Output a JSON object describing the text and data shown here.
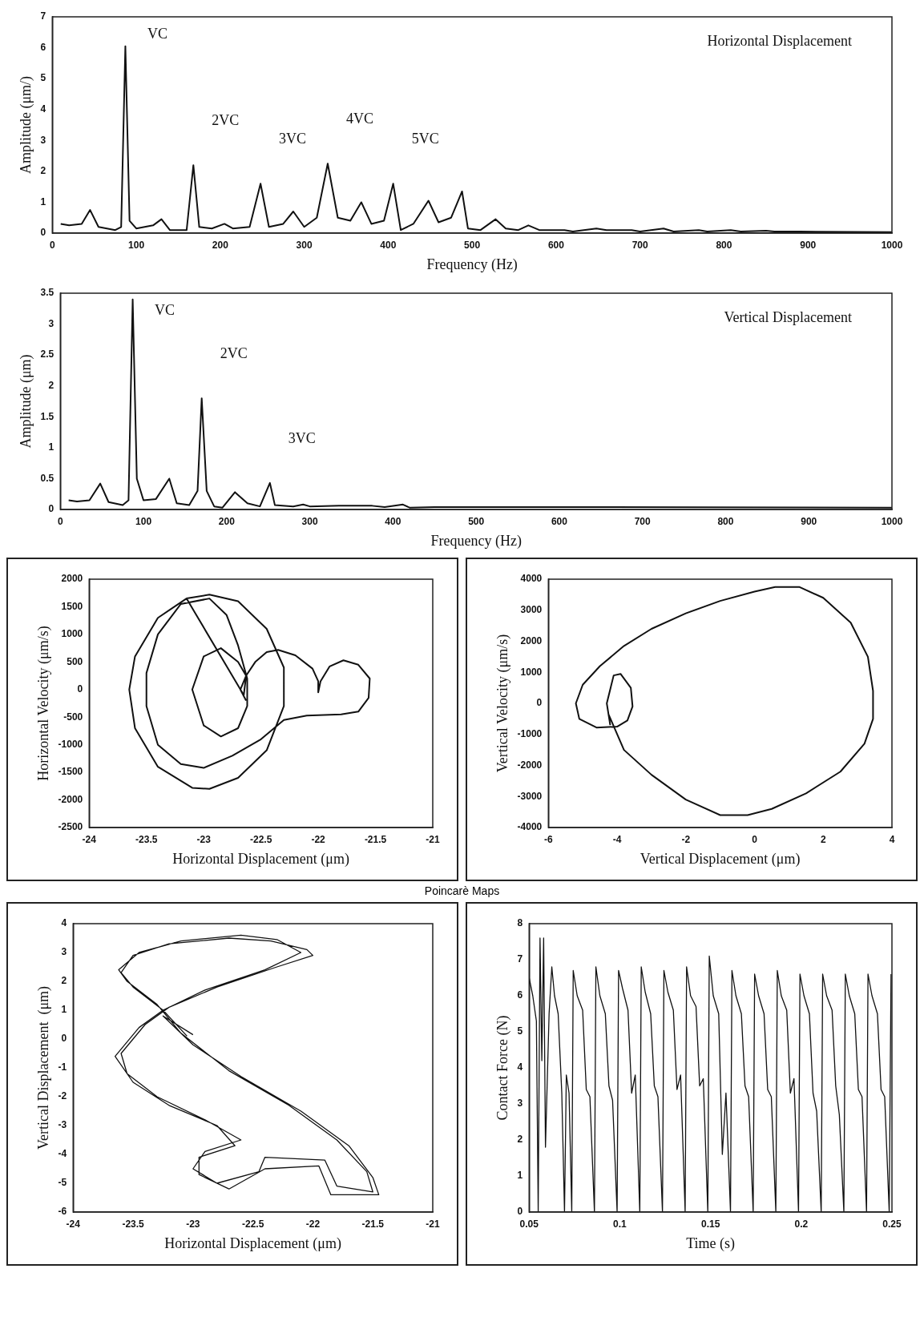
{
  "chart_data": [
    {
      "type": "line",
      "title": "Horizontal Displacement",
      "xlabel": "Frequency (Hz)",
      "ylabel": "Amplitude (μm/)",
      "marker": "none",
      "xlim": [
        0,
        1000
      ],
      "xticks": [
        0,
        100,
        200,
        300,
        400,
        500,
        600,
        700,
        800,
        900,
        1000
      ],
      "ylim": [
        0,
        7
      ],
      "yticks": [
        0,
        1,
        2,
        3,
        4,
        5,
        6,
        7
      ],
      "series": [
        {
          "color": "#111111",
          "x": [
            10,
            20,
            35,
            45,
            55,
            75,
            82,
            87,
            92,
            100,
            120,
            130,
            140,
            160,
            168,
            175,
            190,
            205,
            215,
            235,
            248,
            258,
            275,
            287,
            300,
            315,
            328,
            340,
            355,
            368,
            380,
            395,
            406,
            415,
            430,
            448,
            460,
            475,
            488,
            495,
            510,
            528,
            540,
            555,
            567,
            580,
            610,
            620,
            648,
            660,
            690,
            700,
            728,
            740,
            770,
            780,
            808,
            820,
            850,
            860,
            890,
            1000
          ],
          "values": [
            0.3,
            0.25,
            0.3,
            0.75,
            0.2,
            0.1,
            0.2,
            6.05,
            0.4,
            0.15,
            0.25,
            0.45,
            0.1,
            0.1,
            2.2,
            0.2,
            0.15,
            0.3,
            0.15,
            0.2,
            1.6,
            0.2,
            0.3,
            0.7,
            0.2,
            0.5,
            2.25,
            0.5,
            0.4,
            1,
            0.3,
            0.4,
            1.6,
            0.1,
            0.3,
            1.05,
            0.35,
            0.5,
            1.35,
            0.15,
            0.1,
            0.45,
            0.15,
            0.1,
            0.25,
            0.1,
            0.1,
            0.05,
            0.15,
            0.1,
            0.1,
            0.05,
            0.15,
            0.05,
            0.1,
            0.05,
            0.1,
            0.05,
            0.08,
            0.05,
            0.05,
            0.03
          ]
        }
      ],
      "annotations": [
        {
          "text": "VC",
          "x": 87,
          "y": 6.05
        },
        {
          "text": "2VC",
          "x": 168,
          "y": 2.2
        },
        {
          "text": "3VC",
          "x": 248,
          "y": 1.6
        },
        {
          "text": "4VC",
          "x": 328,
          "y": 2.25
        },
        {
          "text": "5VC",
          "x": 406,
          "y": 1.6
        }
      ]
    },
    {
      "type": "line",
      "title": "Vertical Displacement",
      "xlabel": "Frequency (Hz)",
      "ylabel": "Amplitude (μm)",
      "marker": "none",
      "xlim": [
        0,
        1000
      ],
      "xticks": [
        0,
        100,
        200,
        300,
        400,
        500,
        600,
        700,
        800,
        900,
        1000
      ],
      "ylim": [
        0,
        3.5
      ],
      "yticks": [
        0,
        0.5,
        1,
        1.5,
        2,
        2.5,
        3,
        3.5
      ],
      "series": [
        {
          "color": "#111111",
          "x": [
            10,
            20,
            35,
            48,
            58,
            75,
            82,
            87,
            92,
            100,
            115,
            131,
            140,
            155,
            165,
            170,
            176,
            185,
            195,
            210,
            225,
            240,
            252,
            258,
            280,
            292,
            300,
            335,
            375,
            390,
            412,
            420,
            450,
            600,
            1000
          ],
          "values": [
            0.15,
            0.13,
            0.15,
            0.42,
            0.12,
            0.07,
            0.15,
            3.4,
            0.5,
            0.15,
            0.17,
            0.5,
            0.1,
            0.07,
            0.3,
            1.8,
            0.3,
            0.05,
            0.03,
            0.28,
            0.1,
            0.05,
            0.43,
            0.07,
            0.05,
            0.08,
            0.05,
            0.06,
            0.06,
            0.04,
            0.08,
            0.03,
            0.04,
            0.04,
            0.03
          ]
        }
      ],
      "annotations": [
        {
          "text": "VC",
          "x": 87,
          "y": 3.4
        },
        {
          "text": "2VC",
          "x": 170,
          "y": 1.8
        },
        {
          "text": "3VC",
          "x": 252,
          "y": 0.43
        }
      ]
    },
    {
      "type": "line",
      "xlabel": "Horizontal Displacement (μm)",
      "ylabel": "Horizontal Velocity (μm/s)",
      "marker": "none",
      "xlim": [
        -24,
        -21
      ],
      "xticks": [
        -24,
        -23.5,
        -23,
        -22.5,
        -22,
        -21.5,
        -21
      ],
      "ylim": [
        -2500,
        2000
      ],
      "yticks": [
        -2500,
        -2000,
        -1500,
        -1000,
        -500,
        0,
        500,
        1000,
        1500,
        2000
      ],
      "series": [
        {
          "color": "#111111",
          "x": [
            -22.63,
            -22.68,
            -22.63,
            -22.55,
            -22.45,
            -22.35,
            -22.2,
            -22.05,
            -22,
            -22,
            -21.98,
            -21.9,
            -21.78,
            -21.65,
            -21.55,
            -21.56,
            -21.65,
            -21.8,
            -22.1,
            -22.3,
            -22.5,
            -22.75,
            -23,
            -23.2,
            -23.4,
            -23.5,
            -23.5,
            -23.4,
            -23.2,
            -22.95,
            -22.8,
            -22.7,
            -22.62,
            -22.62,
            -22.7,
            -22.85,
            -23,
            -23.1,
            -23,
            -22.85,
            -22.7,
            -22.63,
            -22.65,
            -23.15,
            -23.4,
            -23.6,
            -23.65,
            -23.6,
            -23.4,
            -23.1,
            -22.95,
            -22.7,
            -22.45,
            -22.3,
            -22.3,
            -22.45,
            -22.7,
            -22.95,
            -23.15
          ],
          "values": [
            -200,
            0,
            250,
            500,
            680,
            720,
            620,
            380,
            150,
            -50,
            150,
            420,
            530,
            450,
            200,
            -150,
            -400,
            -450,
            -470,
            -550,
            -900,
            -1200,
            -1420,
            -1350,
            -1000,
            -300,
            300,
            1000,
            1550,
            1650,
            1350,
            800,
            200,
            -300,
            -700,
            -850,
            -650,
            0,
            600,
            750,
            500,
            250,
            -100,
            1650,
            1300,
            600,
            0,
            -700,
            -1400,
            -1780,
            -1800,
            -1600,
            -1100,
            -300,
            400,
            1100,
            1600,
            1720,
            1650
          ]
        }
      ]
    },
    {
      "type": "line",
      "xlabel": "Vertical Displacement (μm)",
      "ylabel": "Vertical Velocity (μm/s)",
      "marker": "none",
      "xlim": [
        -6,
        4
      ],
      "xticks": [
        -6,
        -4,
        -2,
        0,
        2,
        4
      ],
      "ylim": [
        -4000,
        4000
      ],
      "yticks": [
        -4000,
        -3000,
        -2000,
        -1000,
        0,
        1000,
        2000,
        3000,
        4000
      ],
      "series": [
        {
          "color": "#111111",
          "x": [
            -4.2,
            -4.3,
            -4.1,
            -3.9,
            -3.6,
            -3.55,
            -3.7,
            -4,
            -4.6,
            -5.1,
            -5.2,
            -5,
            -4.5,
            -3.8,
            -3,
            -2,
            -1,
            0,
            0.6,
            1.3,
            2,
            2.8,
            3.3,
            3.45,
            3.45,
            3.2,
            2.5,
            1.5,
            0.5,
            -0.2,
            -1,
            -2,
            -3,
            -3.8,
            -4.25
          ],
          "values": [
            -700,
            0,
            900,
            950,
            500,
            -100,
            -550,
            -750,
            -780,
            -500,
            0,
            600,
            1200,
            1850,
            2400,
            2900,
            3300,
            3600,
            3750,
            3750,
            3400,
            2600,
            1500,
            400,
            -500,
            -1300,
            -2200,
            -2900,
            -3400,
            -3600,
            -3600,
            -3100,
            -2300,
            -1500,
            -350
          ]
        }
      ]
    },
    {
      "type": "line",
      "xlabel": "Horizontal Displacement (μm)",
      "ylabel": "Vertical Displacement  (μm)",
      "marker": "none",
      "xlim": [
        -24,
        -21
      ],
      "xticks": [
        -24,
        -23.5,
        -23,
        -22.5,
        -22,
        -21.5,
        -21
      ],
      "ylim": [
        -6,
        4
      ],
      "yticks": [
        -6,
        -5,
        -4,
        -3,
        -2,
        -1,
        0,
        1,
        2,
        3,
        4
      ],
      "annotations": [
        "Poincarè Maps"
      ],
      "series": [
        {
          "color": "#111111",
          "x": [
            -23.05,
            -23.25,
            -23.5,
            -23.6,
            -23.5,
            -23.2,
            -22.7,
            -22.35,
            -22.05,
            -22,
            -22.3,
            -22.8,
            -23.2,
            -23.4,
            -23.6,
            -23.55,
            -23.3,
            -22.9,
            -22.6,
            -22.9,
            -23,
            -22.8,
            -22.45,
            -22.4,
            -21.9,
            -21.8,
            -21.5,
            -21.55,
            -21.8,
            -22.2,
            -22.7,
            -23.1,
            -23.3,
            -23.55,
            -23.62,
            -23.45,
            -23.1,
            -22.6,
            -22.3,
            -22.1,
            -22.4,
            -22.9,
            -23.25,
            -23.45,
            -23.65,
            -23.5,
            -23.2,
            -22.8,
            -22.65,
            -22.95,
            -22.95,
            -22.7,
            -22.4,
            -21.95,
            -21.85,
            -21.45,
            -21.5,
            -21.7,
            -22.1,
            -22.6,
            -23,
            -23.25,
            -23
          ],
          "values": [
            0.1,
            1,
            1.8,
            2.3,
            2.9,
            3.3,
            3.5,
            3.4,
            3.1,
            2.9,
            2.5,
            1.8,
            1.1,
            0.5,
            -0.5,
            -1.2,
            -2,
            -2.8,
            -3.5,
            -3.9,
            -4.5,
            -5,
            -4.6,
            -4.1,
            -4.2,
            -5.1,
            -5.3,
            -4.6,
            -3.5,
            -2.3,
            -1.1,
            0.2,
            1.2,
            2,
            2.4,
            3,
            3.4,
            3.6,
            3.45,
            3,
            2.4,
            1.7,
            1,
            0.4,
            -0.6,
            -1.5,
            -2.3,
            -3,
            -3.7,
            -4.1,
            -4.7,
            -5.2,
            -4.5,
            -4.4,
            -5.4,
            -5.4,
            -4.8,
            -3.7,
            -2.5,
            -1.3,
            -0.2,
            0.8,
            0.15
          ]
        }
      ]
    },
    {
      "type": "line",
      "xlabel": "Time (s)",
      "ylabel": "Contact Force (N)",
      "marker": "none",
      "xlim": [
        0.05,
        0.25
      ],
      "xticks": [
        0.05,
        0.1,
        0.15,
        0.2,
        0.25
      ],
      "ylim": [
        0,
        8
      ],
      "yticks": [
        0,
        1,
        2,
        3,
        4,
        5,
        6,
        7,
        8
      ],
      "series": [
        {
          "color": "#111111",
          "x": [
            0.05,
            0.052,
            0.054,
            0.055,
            0.056,
            0.057,
            0.058,
            0.059,
            0.061,
            0.0625,
            0.064,
            0.066,
            0.068,
            0.0695,
            0.0705,
            0.072,
            0.0735,
            0.0743,
            0.0765,
            0.0795,
            0.0815,
            0.0835,
            0.086,
            0.0868,
            0.089,
            0.092,
            0.094,
            0.096,
            0.0985,
            0.0993,
            0.1015,
            0.1045,
            0.1065,
            0.1085,
            0.111,
            0.1118,
            0.114,
            0.117,
            0.119,
            0.121,
            0.1235,
            0.1243,
            0.1265,
            0.1295,
            0.1315,
            0.1335,
            0.136,
            0.1368,
            0.139,
            0.142,
            0.144,
            0.146,
            0.1485,
            0.1493,
            0.1515,
            0.1545,
            0.1565,
            0.1585,
            0.161,
            0.1618,
            0.164,
            0.167,
            0.169,
            0.171,
            0.1735,
            0.1743,
            0.1765,
            0.1795,
            0.1815,
            0.1835,
            0.186,
            0.1868,
            0.189,
            0.192,
            0.194,
            0.196,
            0.1985,
            0.1993,
            0.2015,
            0.2045,
            0.2065,
            0.2085,
            0.211,
            0.2118,
            0.214,
            0.217,
            0.219,
            0.221,
            0.2235,
            0.2243,
            0.2265,
            0.2295,
            0.2315,
            0.2335,
            0.236,
            0.2368,
            0.239,
            0.242,
            0.244,
            0.246,
            0.2485,
            0.2495
          ],
          "values": [
            6.5,
            6,
            5.3,
            0,
            7.6,
            4.2,
            7.6,
            1.8,
            5.5,
            6.8,
            6,
            5.5,
            3.3,
            0,
            3.8,
            3.3,
            0,
            6.7,
            6,
            5.6,
            3.4,
            3.2,
            0,
            6.8,
            6,
            5.5,
            3.5,
            3.1,
            0,
            6.7,
            6.2,
            5.6,
            3.3,
            3.8,
            0,
            6.8,
            6.1,
            5.5,
            3.5,
            3.2,
            0,
            6.7,
            6.1,
            5.6,
            3.4,
            3.8,
            0,
            6.8,
            6,
            5.7,
            3.5,
            3.7,
            0,
            7.1,
            6,
            5.5,
            1.6,
            3.3,
            0,
            6.7,
            6,
            5.5,
            3.5,
            3.2,
            0,
            6.6,
            6,
            5.5,
            3.4,
            3.2,
            0,
            6.7,
            6,
            5.6,
            3.3,
            3.7,
            0,
            6.6,
            6,
            5.5,
            3.3,
            2.8,
            0,
            6.6,
            6,
            5.6,
            3.5,
            2.7,
            0,
            6.6,
            6,
            5.5,
            3.4,
            3.2,
            0,
            6.6,
            6,
            5.5,
            3.4,
            3.2,
            0,
            6.6
          ]
        }
      ]
    }
  ]
}
